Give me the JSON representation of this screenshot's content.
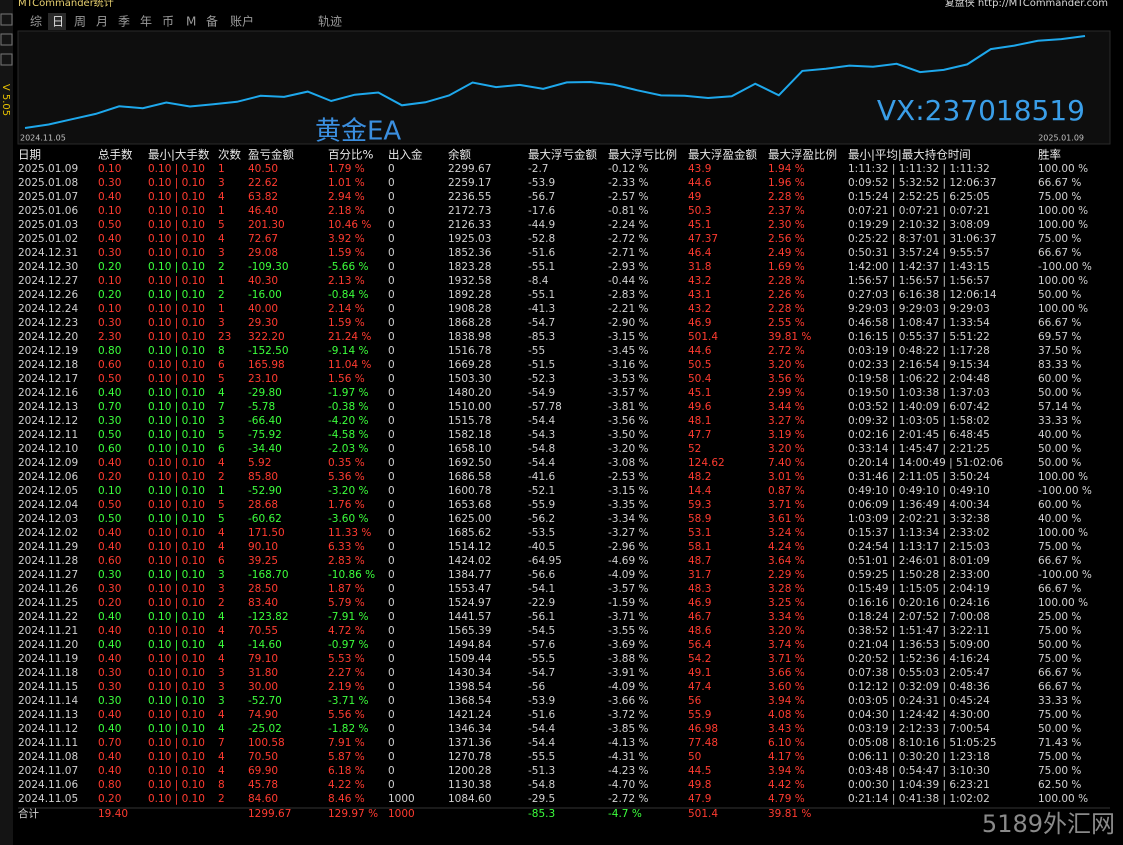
{
  "header": {
    "title": "MTCommander统计",
    "tabs": [
      "综",
      "日",
      "周",
      "月",
      "季",
      "年",
      "币",
      "M",
      "备",
      "账户",
      "轨迹"
    ],
    "right_text": "复盘侠 http://MTCommander.com",
    "version": "V 5.05"
  },
  "chart": {
    "start_label": "2024.11.05",
    "end_label": "2025.01.09",
    "watermark_left": "黄金EA",
    "watermark_right": "VX:237018519"
  },
  "footer_watermark": "5189外汇网",
  "table": {
    "columns": [
      "日期",
      "总手数",
      "最小|大手数",
      "次数",
      "盈亏金额",
      "百分比%",
      "出入金",
      "余额",
      "最大浮亏金额",
      "最大浮亏比例",
      "最大浮盈金额",
      "最大浮盈比例",
      "最小|平均|最大持仓时间",
      "胜率"
    ],
    "rows": [
      [
        "2025.01.09",
        "0.10",
        "0.10 | 0.10",
        "1",
        "40.50",
        "1.79 %",
        "0",
        "2299.67",
        "-2.7",
        "-0.12 %",
        "43.9",
        "1.94 %",
        "1:11:32 | 1:11:32 | 1:11:32",
        "100.00 %"
      ],
      [
        "2025.01.08",
        "0.30",
        "0.10 | 0.10",
        "3",
        "22.62",
        "1.01 %",
        "0",
        "2259.17",
        "-53.9",
        "-2.33 %",
        "44.6",
        "1.96 %",
        "0:09:52 | 5:32:52 | 12:06:37",
        "66.67 %"
      ],
      [
        "2025.01.07",
        "0.40",
        "0.10 | 0.10",
        "4",
        "63.82",
        "2.94 %",
        "0",
        "2236.55",
        "-56.7",
        "-2.57 %",
        "49",
        "2.28 %",
        "0:15:24 | 2:52:25 | 6:25:05",
        "75.00 %"
      ],
      [
        "2025.01.06",
        "0.10",
        "0.10 | 0.10",
        "1",
        "46.40",
        "2.18 %",
        "0",
        "2172.73",
        "-17.6",
        "-0.81 %",
        "50.3",
        "2.37 %",
        "0:07:21 | 0:07:21 | 0:07:21",
        "100.00 %"
      ],
      [
        "2025.01.03",
        "0.50",
        "0.10 | 0.10",
        "5",
        "201.30",
        "10.46 %",
        "0",
        "2126.33",
        "-44.9",
        "-2.24 %",
        "45.1",
        "2.30 %",
        "0:19:29 | 2:10:32 | 3:08:09",
        "100.00 %"
      ],
      [
        "2025.01.02",
        "0.40",
        "0.10 | 0.10",
        "4",
        "72.67",
        "3.92 %",
        "0",
        "1925.03",
        "-52.8",
        "-2.72 %",
        "47.37",
        "2.56 %",
        "0:25:22 | 8:37:01 | 31:06:37",
        "75.00 %"
      ],
      [
        "2024.12.31",
        "0.30",
        "0.10 | 0.10",
        "3",
        "29.08",
        "1.59 %",
        "0",
        "1852.36",
        "-51.6",
        "-2.71 %",
        "46.4",
        "2.49 %",
        "0:50:31 | 3:57:24 | 9:55:57",
        "66.67 %"
      ],
      [
        "2024.12.30",
        "0.20",
        "0.10 | 0.10",
        "2",
        "-109.30",
        "-5.66 %",
        "0",
        "1823.28",
        "-55.1",
        "-2.93 %",
        "31.8",
        "1.69 %",
        "1:42:00 | 1:42:37 | 1:43:15",
        "-100.00 %"
      ],
      [
        "2024.12.27",
        "0.10",
        "0.10 | 0.10",
        "1",
        "40.30",
        "2.13 %",
        "0",
        "1932.58",
        "-8.4",
        "-0.44 %",
        "43.2",
        "2.28 %",
        "1:56:57 | 1:56:57 | 1:56:57",
        "100.00 %"
      ],
      [
        "2024.12.26",
        "0.20",
        "0.10 | 0.10",
        "2",
        "-16.00",
        "-0.84 %",
        "0",
        "1892.28",
        "-55.1",
        "-2.83 %",
        "43.1",
        "2.26 %",
        "0:27:03 | 6:16:38 | 12:06:14",
        "50.00 %"
      ],
      [
        "2024.12.24",
        "0.10",
        "0.10 | 0.10",
        "1",
        "40.00",
        "2.14 %",
        "0",
        "1908.28",
        "-41.3",
        "-2.21 %",
        "43.2",
        "2.28 %",
        "9:29:03 | 9:29:03 | 9:29:03",
        "100.00 %"
      ],
      [
        "2024.12.23",
        "0.30",
        "0.10 | 0.10",
        "3",
        "29.30",
        "1.59 %",
        "0",
        "1868.28",
        "-54.7",
        "-2.90 %",
        "46.9",
        "2.55 %",
        "0:46:58 | 1:08:47 | 1:33:54",
        "66.67 %"
      ],
      [
        "2024.12.20",
        "2.30",
        "0.10 | 0.10",
        "23",
        "322.20",
        "21.24 %",
        "0",
        "1838.98",
        "-85.3",
        "-3.15 %",
        "501.4",
        "39.81 %",
        "0:16:15 | 0:55:37 | 5:51:22",
        "69.57 %"
      ],
      [
        "2024.12.19",
        "0.80",
        "0.10 | 0.10",
        "8",
        "-152.50",
        "-9.14 %",
        "0",
        "1516.78",
        "-55",
        "-3.45 %",
        "44.6",
        "2.72 %",
        "0:03:19 | 0:48:22 | 1:17:28",
        "37.50 %"
      ],
      [
        "2024.12.18",
        "0.60",
        "0.10 | 0.10",
        "6",
        "165.98",
        "11.04 %",
        "0",
        "1669.28",
        "-51.5",
        "-3.16 %",
        "50.5",
        "3.20 %",
        "0:02:33 | 2:16:54 | 9:15:34",
        "83.33 %"
      ],
      [
        "2024.12.17",
        "0.50",
        "0.10 | 0.10",
        "5",
        "23.10",
        "1.56 %",
        "0",
        "1503.30",
        "-52.3",
        "-3.53 %",
        "50.4",
        "3.56 %",
        "0:19:58 | 1:06:22 | 2:04:48",
        "60.00 %"
      ],
      [
        "2024.12.16",
        "0.40",
        "0.10 | 0.10",
        "4",
        "-29.80",
        "-1.97 %",
        "0",
        "1480.20",
        "-54.9",
        "-3.57 %",
        "45.1",
        "2.99 %",
        "0:19:50 | 1:03:38 | 1:37:03",
        "50.00 %"
      ],
      [
        "2024.12.13",
        "0.70",
        "0.10 | 0.10",
        "7",
        "-5.78",
        "-0.38 %",
        "0",
        "1510.00",
        "-57.78",
        "-3.81 %",
        "49.6",
        "3.44 %",
        "0:03:52 | 1:40:09 | 6:07:42",
        "57.14 %"
      ],
      [
        "2024.12.12",
        "0.30",
        "0.10 | 0.10",
        "3",
        "-66.40",
        "-4.20 %",
        "0",
        "1515.78",
        "-54.4",
        "-3.56 %",
        "48.1",
        "3.27 %",
        "0:09:32 | 1:03:05 | 1:58:02",
        "33.33 %"
      ],
      [
        "2024.12.11",
        "0.50",
        "0.10 | 0.10",
        "5",
        "-75.92",
        "-4.58 %",
        "0",
        "1582.18",
        "-54.3",
        "-3.50 %",
        "47.7",
        "3.19 %",
        "0:02:16 | 2:01:45 | 6:48:45",
        "40.00 %"
      ],
      [
        "2024.12.10",
        "0.60",
        "0.10 | 0.10",
        "6",
        "-34.40",
        "-2.03 %",
        "0",
        "1658.10",
        "-54.8",
        "-3.20 %",
        "52",
        "3.20 %",
        "0:33:14 | 1:45:47 | 2:21:25",
        "50.00 %"
      ],
      [
        "2024.12.09",
        "0.40",
        "0.10 | 0.10",
        "4",
        "5.92",
        "0.35 %",
        "0",
        "1692.50",
        "-54.4",
        "-3.08 %",
        "124.62",
        "7.40 %",
        "0:20:14 | 14:00:49 | 51:02:06",
        "50.00 %"
      ],
      [
        "2024.12.06",
        "0.20",
        "0.10 | 0.10",
        "2",
        "85.80",
        "5.36 %",
        "0",
        "1686.58",
        "-41.6",
        "-2.53 %",
        "48.2",
        "3.01 %",
        "0:31:46 | 2:11:05 | 3:50:24",
        "100.00 %"
      ],
      [
        "2024.12.05",
        "0.10",
        "0.10 | 0.10",
        "1",
        "-52.90",
        "-3.20 %",
        "0",
        "1600.78",
        "-52.1",
        "-3.15 %",
        "14.4",
        "0.87 %",
        "0:49:10 | 0:49:10 | 0:49:10",
        "-100.00 %"
      ],
      [
        "2024.12.04",
        "0.50",
        "0.10 | 0.10",
        "5",
        "28.68",
        "1.76 %",
        "0",
        "1653.68",
        "-55.9",
        "-3.35 %",
        "59.3",
        "3.71 %",
        "0:06:09 | 1:36:49 | 4:00:34",
        "60.00 %"
      ],
      [
        "2024.12.03",
        "0.50",
        "0.10 | 0.10",
        "5",
        "-60.62",
        "-3.60 %",
        "0",
        "1625.00",
        "-56.2",
        "-3.34 %",
        "58.9",
        "3.61 %",
        "1:03:09 | 2:02:21 | 3:32:38",
        "40.00 %"
      ],
      [
        "2024.12.02",
        "0.40",
        "0.10 | 0.10",
        "4",
        "171.50",
        "11.33 %",
        "0",
        "1685.62",
        "-53.5",
        "-3.27 %",
        "53.1",
        "3.24 %",
        "0:15:37 | 1:13:34 | 2:33:02",
        "100.00 %"
      ],
      [
        "2024.11.29",
        "0.40",
        "0.10 | 0.10",
        "4",
        "90.10",
        "6.33 %",
        "0",
        "1514.12",
        "-40.5",
        "-2.96 %",
        "58.1",
        "4.24 %",
        "0:24:54 | 1:13:17 | 2:15:03",
        "75.00 %"
      ],
      [
        "2024.11.28",
        "0.60",
        "0.10 | 0.10",
        "6",
        "39.25",
        "2.83 %",
        "0",
        "1424.02",
        "-64.95",
        "-4.69 %",
        "48.7",
        "3.64 %",
        "0:51:01 | 2:46:01 | 8:01:09",
        "66.67 %"
      ],
      [
        "2024.11.27",
        "0.30",
        "0.10 | 0.10",
        "3",
        "-168.70",
        "-10.86 %",
        "0",
        "1384.77",
        "-56.6",
        "-4.09 %",
        "31.7",
        "2.29 %",
        "0:59:25 | 1:50:28 | 2:33:00",
        "-100.00 %"
      ],
      [
        "2024.11.26",
        "0.30",
        "0.10 | 0.10",
        "3",
        "28.50",
        "1.87 %",
        "0",
        "1553.47",
        "-54.1",
        "-3.57 %",
        "48.3",
        "3.28 %",
        "0:15:49 | 1:15:05 | 2:04:19",
        "66.67 %"
      ],
      [
        "2024.11.25",
        "0.20",
        "0.10 | 0.10",
        "2",
        "83.40",
        "5.79 %",
        "0",
        "1524.97",
        "-22.9",
        "-1.59 %",
        "46.9",
        "3.25 %",
        "0:16:16 | 0:20:16 | 0:24:16",
        "100.00 %"
      ],
      [
        "2024.11.22",
        "0.40",
        "0.10 | 0.10",
        "4",
        "-123.82",
        "-7.91 %",
        "0",
        "1441.57",
        "-56.1",
        "-3.71 %",
        "46.7",
        "3.34 %",
        "0:18:24 | 2:07:52 | 7:00:08",
        "25.00 %"
      ],
      [
        "2024.11.21",
        "0.40",
        "0.10 | 0.10",
        "4",
        "70.55",
        "4.72 %",
        "0",
        "1565.39",
        "-54.5",
        "-3.55 %",
        "48.6",
        "3.20 %",
        "0:38:52 | 1:51:47 | 3:22:11",
        "75.00 %"
      ],
      [
        "2024.11.20",
        "0.40",
        "0.10 | 0.10",
        "4",
        "-14.60",
        "-0.97 %",
        "0",
        "1494.84",
        "-57.6",
        "-3.69 %",
        "56.4",
        "3.74 %",
        "0:21:04 | 1:36:53 | 5:09:00",
        "50.00 %"
      ],
      [
        "2024.11.19",
        "0.40",
        "0.10 | 0.10",
        "4",
        "79.10",
        "5.53 %",
        "0",
        "1509.44",
        "-55.5",
        "-3.88 %",
        "54.2",
        "3.71 %",
        "0:20:52 | 1:52:36 | 4:16:24",
        "75.00 %"
      ],
      [
        "2024.11.18",
        "0.30",
        "0.10 | 0.10",
        "3",
        "31.80",
        "2.27 %",
        "0",
        "1430.34",
        "-54.7",
        "-3.91 %",
        "49.1",
        "3.66 %",
        "0:07:38 | 0:55:03 | 2:05:47",
        "66.67 %"
      ],
      [
        "2024.11.15",
        "0.30",
        "0.10 | 0.10",
        "3",
        "30.00",
        "2.19 %",
        "0",
        "1398.54",
        "-56",
        "-4.09 %",
        "47.4",
        "3.60 %",
        "0:12:12 | 0:32:09 | 0:48:36",
        "66.67 %"
      ],
      [
        "2024.11.14",
        "0.30",
        "0.10 | 0.10",
        "3",
        "-52.70",
        "-3.71 %",
        "0",
        "1368.54",
        "-53.9",
        "-3.66 %",
        "56",
        "3.94 %",
        "0:03:05 | 0:24:31 | 0:45:24",
        "33.33 %"
      ],
      [
        "2024.11.13",
        "0.40",
        "0.10 | 0.10",
        "4",
        "74.90",
        "5.56 %",
        "0",
        "1421.24",
        "-51.6",
        "-3.72 %",
        "55.9",
        "4.08 %",
        "0:04:30 | 1:24:42 | 4:30:00",
        "75.00 %"
      ],
      [
        "2024.11.12",
        "0.40",
        "0.10 | 0.10",
        "4",
        "-25.02",
        "-1.82 %",
        "0",
        "1346.34",
        "-54.4",
        "-3.85 %",
        "46.98",
        "3.43 %",
        "0:03:19 | 2:12:33 | 7:00:54",
        "50.00 %"
      ],
      [
        "2024.11.11",
        "0.70",
        "0.10 | 0.10",
        "7",
        "100.58",
        "7.91 %",
        "0",
        "1371.36",
        "-54.4",
        "-4.13 %",
        "77.48",
        "6.10 %",
        "0:05:08 | 8:10:16 | 51:05:25",
        "71.43 %"
      ],
      [
        "2024.11.08",
        "0.40",
        "0.10 | 0.10",
        "4",
        "70.50",
        "5.87 %",
        "0",
        "1270.78",
        "-55.5",
        "-4.31 %",
        "50",
        "4.17 %",
        "0:06:11 | 0:30:20 | 1:23:18",
        "75.00 %"
      ],
      [
        "2024.11.07",
        "0.40",
        "0.10 | 0.10",
        "4",
        "69.90",
        "6.18 %",
        "0",
        "1200.28",
        "-51.3",
        "-4.23 %",
        "44.5",
        "3.94 %",
        "0:03:48 | 0:54:47 | 3:10:30",
        "75.00 %"
      ],
      [
        "2024.11.06",
        "0.80",
        "0.10 | 0.10",
        "8",
        "45.78",
        "4.22 %",
        "0",
        "1130.38",
        "-54.8",
        "-4.70 %",
        "49.8",
        "4.42 %",
        "0:00:30 | 1:04:39 | 6:23:21",
        "62.50 %"
      ],
      [
        "2024.11.05",
        "0.20",
        "0.10 | 0.10",
        "2",
        "84.60",
        "8.46 %",
        "1000",
        "1084.60",
        "-29.5",
        "-2.72 %",
        "47.9",
        "4.79 %",
        "0:21:14 | 0:41:38 | 1:02:02",
        "100.00 %"
      ]
    ],
    "total": {
      "label": "合计",
      "lots": "19.40",
      "pnl": "1299.67",
      "pct": "129.97 %",
      "inout": "1000",
      "max_loss": "-85.3",
      "max_loss_pct": "-4.7 %",
      "max_gain": "501.4",
      "max_gain_pct": "39.81 %"
    }
  }
}
